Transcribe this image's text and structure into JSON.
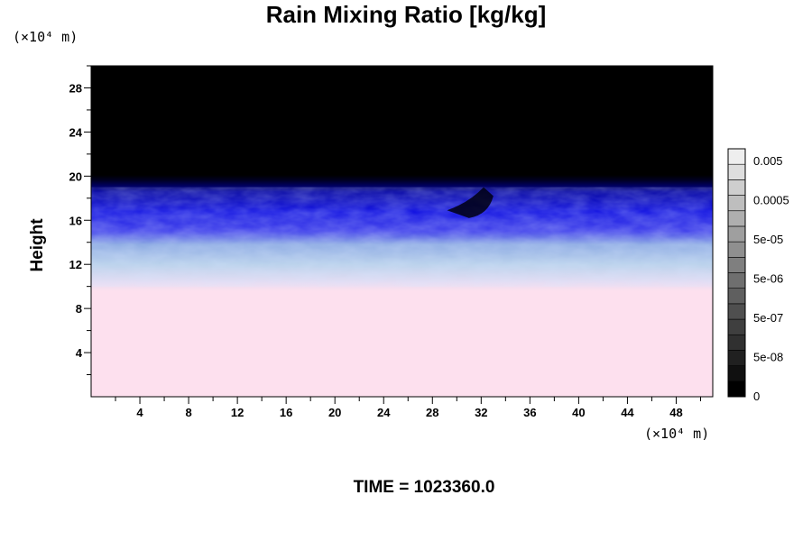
{
  "chart_data": {
    "type": "heatmap",
    "title": "Rain Mixing Ratio [kg/kg]",
    "ylabel": "Height",
    "y_unit": "(×10⁴ m)",
    "x_unit": "(×10⁴ m)",
    "footer": "TIME = 1023360.0",
    "xlim": [
      0,
      51
    ],
    "ylim": [
      0,
      30
    ],
    "x_ticks": [
      4,
      8,
      12,
      16,
      20,
      24,
      28,
      32,
      36,
      40,
      44,
      48
    ],
    "y_ticks": [
      4,
      8,
      12,
      16,
      20,
      24,
      28
    ],
    "colorbar": {
      "labels": [
        "0.005",
        "0.0005",
        "5e-05",
        "5e-06",
        "5e-07",
        "5e-08",
        "0"
      ],
      "levels": 16
    },
    "bands": [
      {
        "from": 0,
        "to": 10,
        "color": "#fde0ee",
        "description_value": "lower region"
      },
      {
        "from": 10,
        "to": 12,
        "color": "#dcd8ef"
      },
      {
        "from": 12,
        "to": 14,
        "color": "#a6c7e6"
      },
      {
        "from": 14,
        "to": 16,
        "color": "#4444ee"
      },
      {
        "from": 16,
        "to": 19,
        "color": "#0a0ae0"
      },
      {
        "from": 19,
        "to": 30,
        "color": "#000000"
      }
    ]
  },
  "colors": {
    "background": "#ffffff",
    "upper": "#000000",
    "blue": "#0a0ae0",
    "light_blue": "#a6c7e6",
    "pink": "#fde0ee"
  }
}
